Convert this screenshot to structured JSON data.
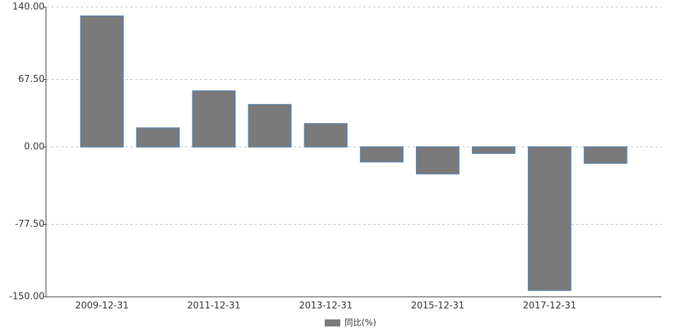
{
  "chart_data": {
    "type": "bar",
    "categories": [
      "2009-12-31",
      null,
      "2011-12-31",
      null,
      "2013-12-31",
      null,
      "2015-12-31",
      null,
      "2017-12-31",
      null
    ],
    "series": [
      {
        "name": "同比(%)",
        "color": "#7a7a7a",
        "values": [
          131,
          19,
          56,
          42.4,
          23.3,
          -14.9,
          -26.9,
          -6.4,
          -143.6,
          -16.3
        ]
      }
    ],
    "ylim": [
      -150,
      140
    ],
    "yticks": [
      {
        "value": -150,
        "label": "-150.00"
      },
      {
        "value": -77.5,
        "label": "-77.50"
      },
      {
        "value": 0,
        "label": "0.00"
      },
      {
        "value": 67.5,
        "label": "67.50"
      },
      {
        "value": 140,
        "label": "140.00"
      }
    ],
    "grid": true
  }
}
